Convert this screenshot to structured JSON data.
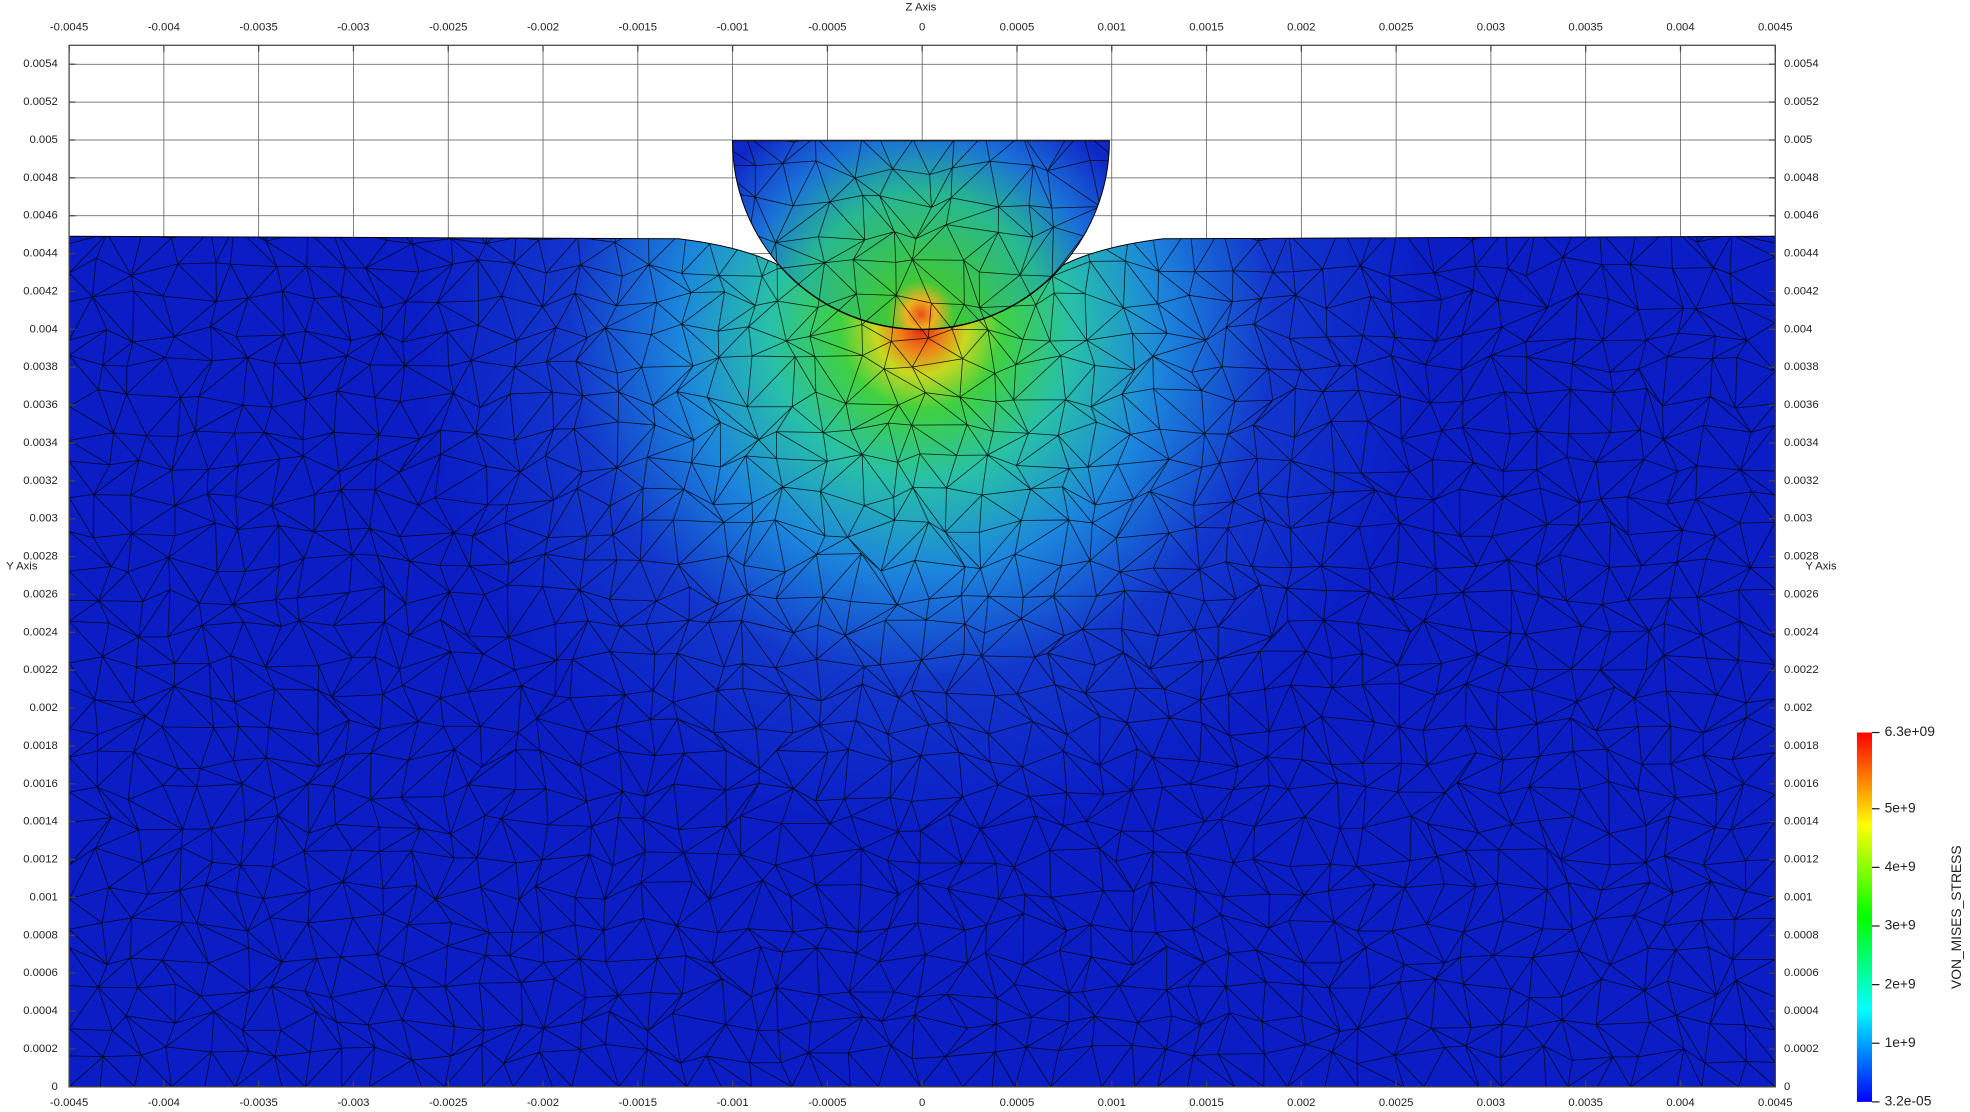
{
  "chart_data": {
    "type": "field",
    "x_label": "Z Axis",
    "y_label": "Y Axis",
    "xlim": [
      -0.0045,
      0.0045
    ],
    "ylim": [
      0,
      0.0055
    ],
    "xticks": [
      -0.0045,
      -0.004,
      -0.0035,
      -0.003,
      -0.0025,
      -0.002,
      -0.0015,
      -0.001,
      -0.0005,
      0,
      0.0005,
      0.001,
      0.0015,
      0.002,
      0.0025,
      0.003,
      0.0035,
      0.004,
      0.0045
    ],
    "yticks": [
      0,
      0.0002,
      0.0004,
      0.0006,
      0.0008,
      0.001,
      0.0012,
      0.0014,
      0.0016,
      0.0018,
      0.002,
      0.0022,
      0.0024,
      0.0026,
      0.0028,
      0.003,
      0.0032,
      0.0034,
      0.0036,
      0.0038,
      0.004,
      0.0042,
      0.0044,
      0.0046,
      0.0048,
      0.005,
      0.0052,
      0.0054
    ],
    "grid": true,
    "colorbar": {
      "title": "VON_MISES_STRESS",
      "lim": [
        3.2e-05,
        6300000000
      ],
      "ticks": [
        {
          "value": 3.2e-05,
          "label": "3.2e-05"
        },
        {
          "value": 1000000000,
          "label": "1e+9"
        },
        {
          "value": 2000000000,
          "label": "2e+9"
        },
        {
          "value": 3000000000,
          "label": "3e+9"
        },
        {
          "value": 4000000000,
          "label": "4e+9"
        },
        {
          "value": 5000000000,
          "label": "5e+9"
        },
        {
          "value": 6300000000,
          "label": "6.3e+09"
        }
      ]
    }
  }
}
